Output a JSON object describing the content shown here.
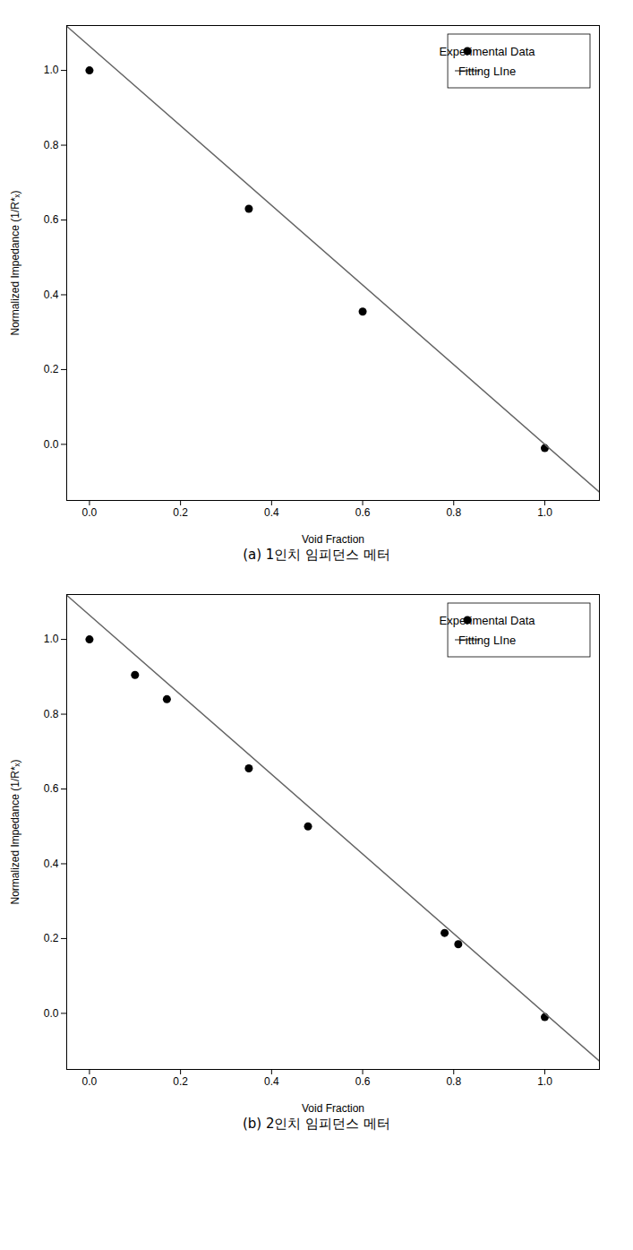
{
  "chart_data": [
    {
      "type": "scatter",
      "xlabel": "Void Fraction",
      "ylabel": "Normalized Impedance (1/R*ₓ)",
      "caption": "(a) 1인치  임피던스  메터",
      "xlim": [
        -0.05,
        1.12
      ],
      "ylim": [
        -0.15,
        1.12
      ],
      "xticks": [
        {
          "value": 0.0,
          "label": "0.0"
        },
        0.2,
        0.4,
        0.6,
        0.8,
        {
          "value": 1.0,
          "label": "1.0"
        }
      ],
      "yticks": [
        {
          "value": 0.0,
          "label": "0.0"
        },
        0.2,
        0.4,
        0.6,
        0.8,
        {
          "value": 1.0,
          "label": "1.0"
        }
      ],
      "grid": false,
      "legend": "upper right",
      "series": [
        {
          "name": "Experimental Data",
          "type": "scatter",
          "color": "#000000",
          "marker": "circle",
          "x": [
            0.0,
            0.35,
            0.6,
            1.0
          ],
          "values": [
            1.0,
            0.63,
            0.355,
            -0.01
          ]
        },
        {
          "name": "Fitting LIne",
          "type": "line",
          "color": "#666666",
          "line_style": "solid",
          "x": [
            -0.05,
            1.12
          ],
          "values": [
            1.11825,
            -0.1278
          ]
        }
      ]
    },
    {
      "type": "scatter",
      "xlabel": "Void Fraction",
      "ylabel": "Normalized Impedance (1/R*ₓ)",
      "caption": "(b) 2인치  임피던스  메터",
      "xlim": [
        -0.05,
        1.12
      ],
      "ylim": [
        -0.15,
        1.12
      ],
      "xticks": [
        {
          "value": 0.0,
          "label": "0.0"
        },
        0.2,
        0.4,
        0.6,
        0.8,
        {
          "value": 1.0,
          "label": "1.0"
        }
      ],
      "yticks": [
        {
          "value": 0.0,
          "label": "0.0"
        },
        0.2,
        0.4,
        0.6,
        0.8,
        {
          "value": 1.0,
          "label": "1.0"
        }
      ],
      "grid": false,
      "legend": "upper right",
      "series": [
        {
          "name": "Experimental Data",
          "type": "scatter",
          "color": "#000000",
          "marker": "circle",
          "x": [
            0.0,
            0.1,
            0.17,
            0.35,
            0.48,
            0.78,
            0.81,
            1.0
          ],
          "values": [
            1.0,
            0.905,
            0.84,
            0.655,
            0.5,
            0.215,
            0.185,
            -0.01
          ]
        },
        {
          "name": "Fitting LIne",
          "type": "line",
          "color": "#666666",
          "line_style": "solid",
          "x": [
            -0.05,
            1.12
          ],
          "values": [
            1.11825,
            -0.1278
          ]
        }
      ]
    }
  ]
}
